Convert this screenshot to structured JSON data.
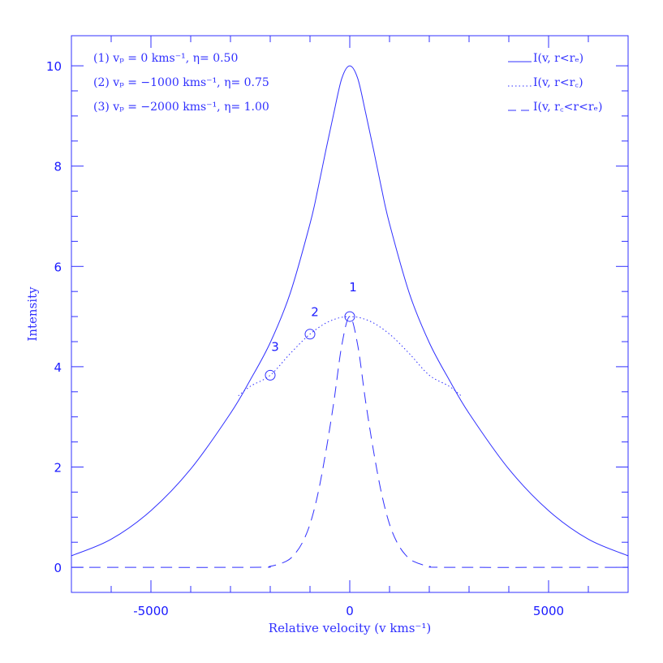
{
  "chart_data": {
    "type": "line",
    "title": "",
    "xlabel": "Relative velocity (v kms⁻¹)",
    "ylabel": "Intensity",
    "xlim": [
      -7000,
      7000
    ],
    "ylim": [
      -0.5,
      10.6
    ],
    "xticks": [
      -5000,
      0,
      5000
    ],
    "xtick_labels": [
      "-5000",
      "0",
      "5000"
    ],
    "yticks": [
      0,
      2,
      4,
      6,
      8,
      10
    ],
    "ytick_labels": [
      "0",
      "2",
      "4",
      "6",
      "8",
      "10"
    ],
    "grid": false,
    "legend_position": "top-right",
    "series": [
      {
        "name": "I(v, r<rₑ)",
        "style": "solid",
        "x": [
          -7000,
          -6000,
          -5000,
          -4000,
          -3000,
          -2500,
          -2000,
          -1500,
          -1000,
          -800,
          -600,
          -400,
          -200,
          0,
          200,
          400,
          600,
          800,
          1000,
          1500,
          2000,
          2500,
          3000,
          4000,
          5000,
          6000,
          7000
        ],
        "y": [
          0.23,
          0.56,
          1.13,
          1.96,
          3.07,
          3.74,
          4.48,
          5.46,
          6.85,
          7.55,
          8.32,
          9.06,
          9.75,
          10.0,
          9.75,
          9.06,
          8.32,
          7.55,
          6.85,
          5.46,
          4.48,
          3.74,
          3.07,
          1.96,
          1.13,
          0.56,
          0.23
        ]
      },
      {
        "name": "I(v, r<r꜀)",
        "style": "dotted",
        "x": [
          -2800,
          -2500,
          -2000,
          -1500,
          -1000,
          -500,
          0,
          500,
          1000,
          1500,
          2000,
          2500,
          2800
        ],
        "y": [
          3.42,
          3.61,
          3.83,
          4.26,
          4.65,
          4.91,
          5.0,
          4.91,
          4.65,
          4.26,
          3.83,
          3.61,
          3.42
        ]
      },
      {
        "name": "I(v, r꜀<r<rₑ)",
        "style": "dashed",
        "x": [
          -7000,
          -2500,
          -2000,
          -1600,
          -1400,
          -1200,
          -1000,
          -800,
          -600,
          -400,
          -200,
          0,
          200,
          400,
          600,
          800,
          1000,
          1200,
          1400,
          1600,
          2000,
          2500,
          7000
        ],
        "y": [
          0.0,
          0.0,
          0.02,
          0.12,
          0.25,
          0.48,
          0.86,
          1.47,
          2.31,
          3.3,
          4.43,
          5.0,
          4.43,
          3.3,
          2.31,
          1.47,
          0.86,
          0.48,
          0.25,
          0.12,
          0.02,
          0.0,
          0.0
        ]
      }
    ],
    "markers": [
      {
        "label": "1",
        "x": 0,
        "y": 5.0
      },
      {
        "label": "2",
        "x": -1000,
        "y": 4.65
      },
      {
        "label": "3",
        "x": -2000,
        "y": 3.83
      }
    ],
    "annotations": [
      "(1) vₚ = 0 kms⁻¹, η= 0.50",
      "(2) vₚ = −1000  kms⁻¹, η= 0.75",
      "(3) vₚ = −2000  kms⁻¹, η= 1.00"
    ],
    "color": "#3030ff"
  }
}
